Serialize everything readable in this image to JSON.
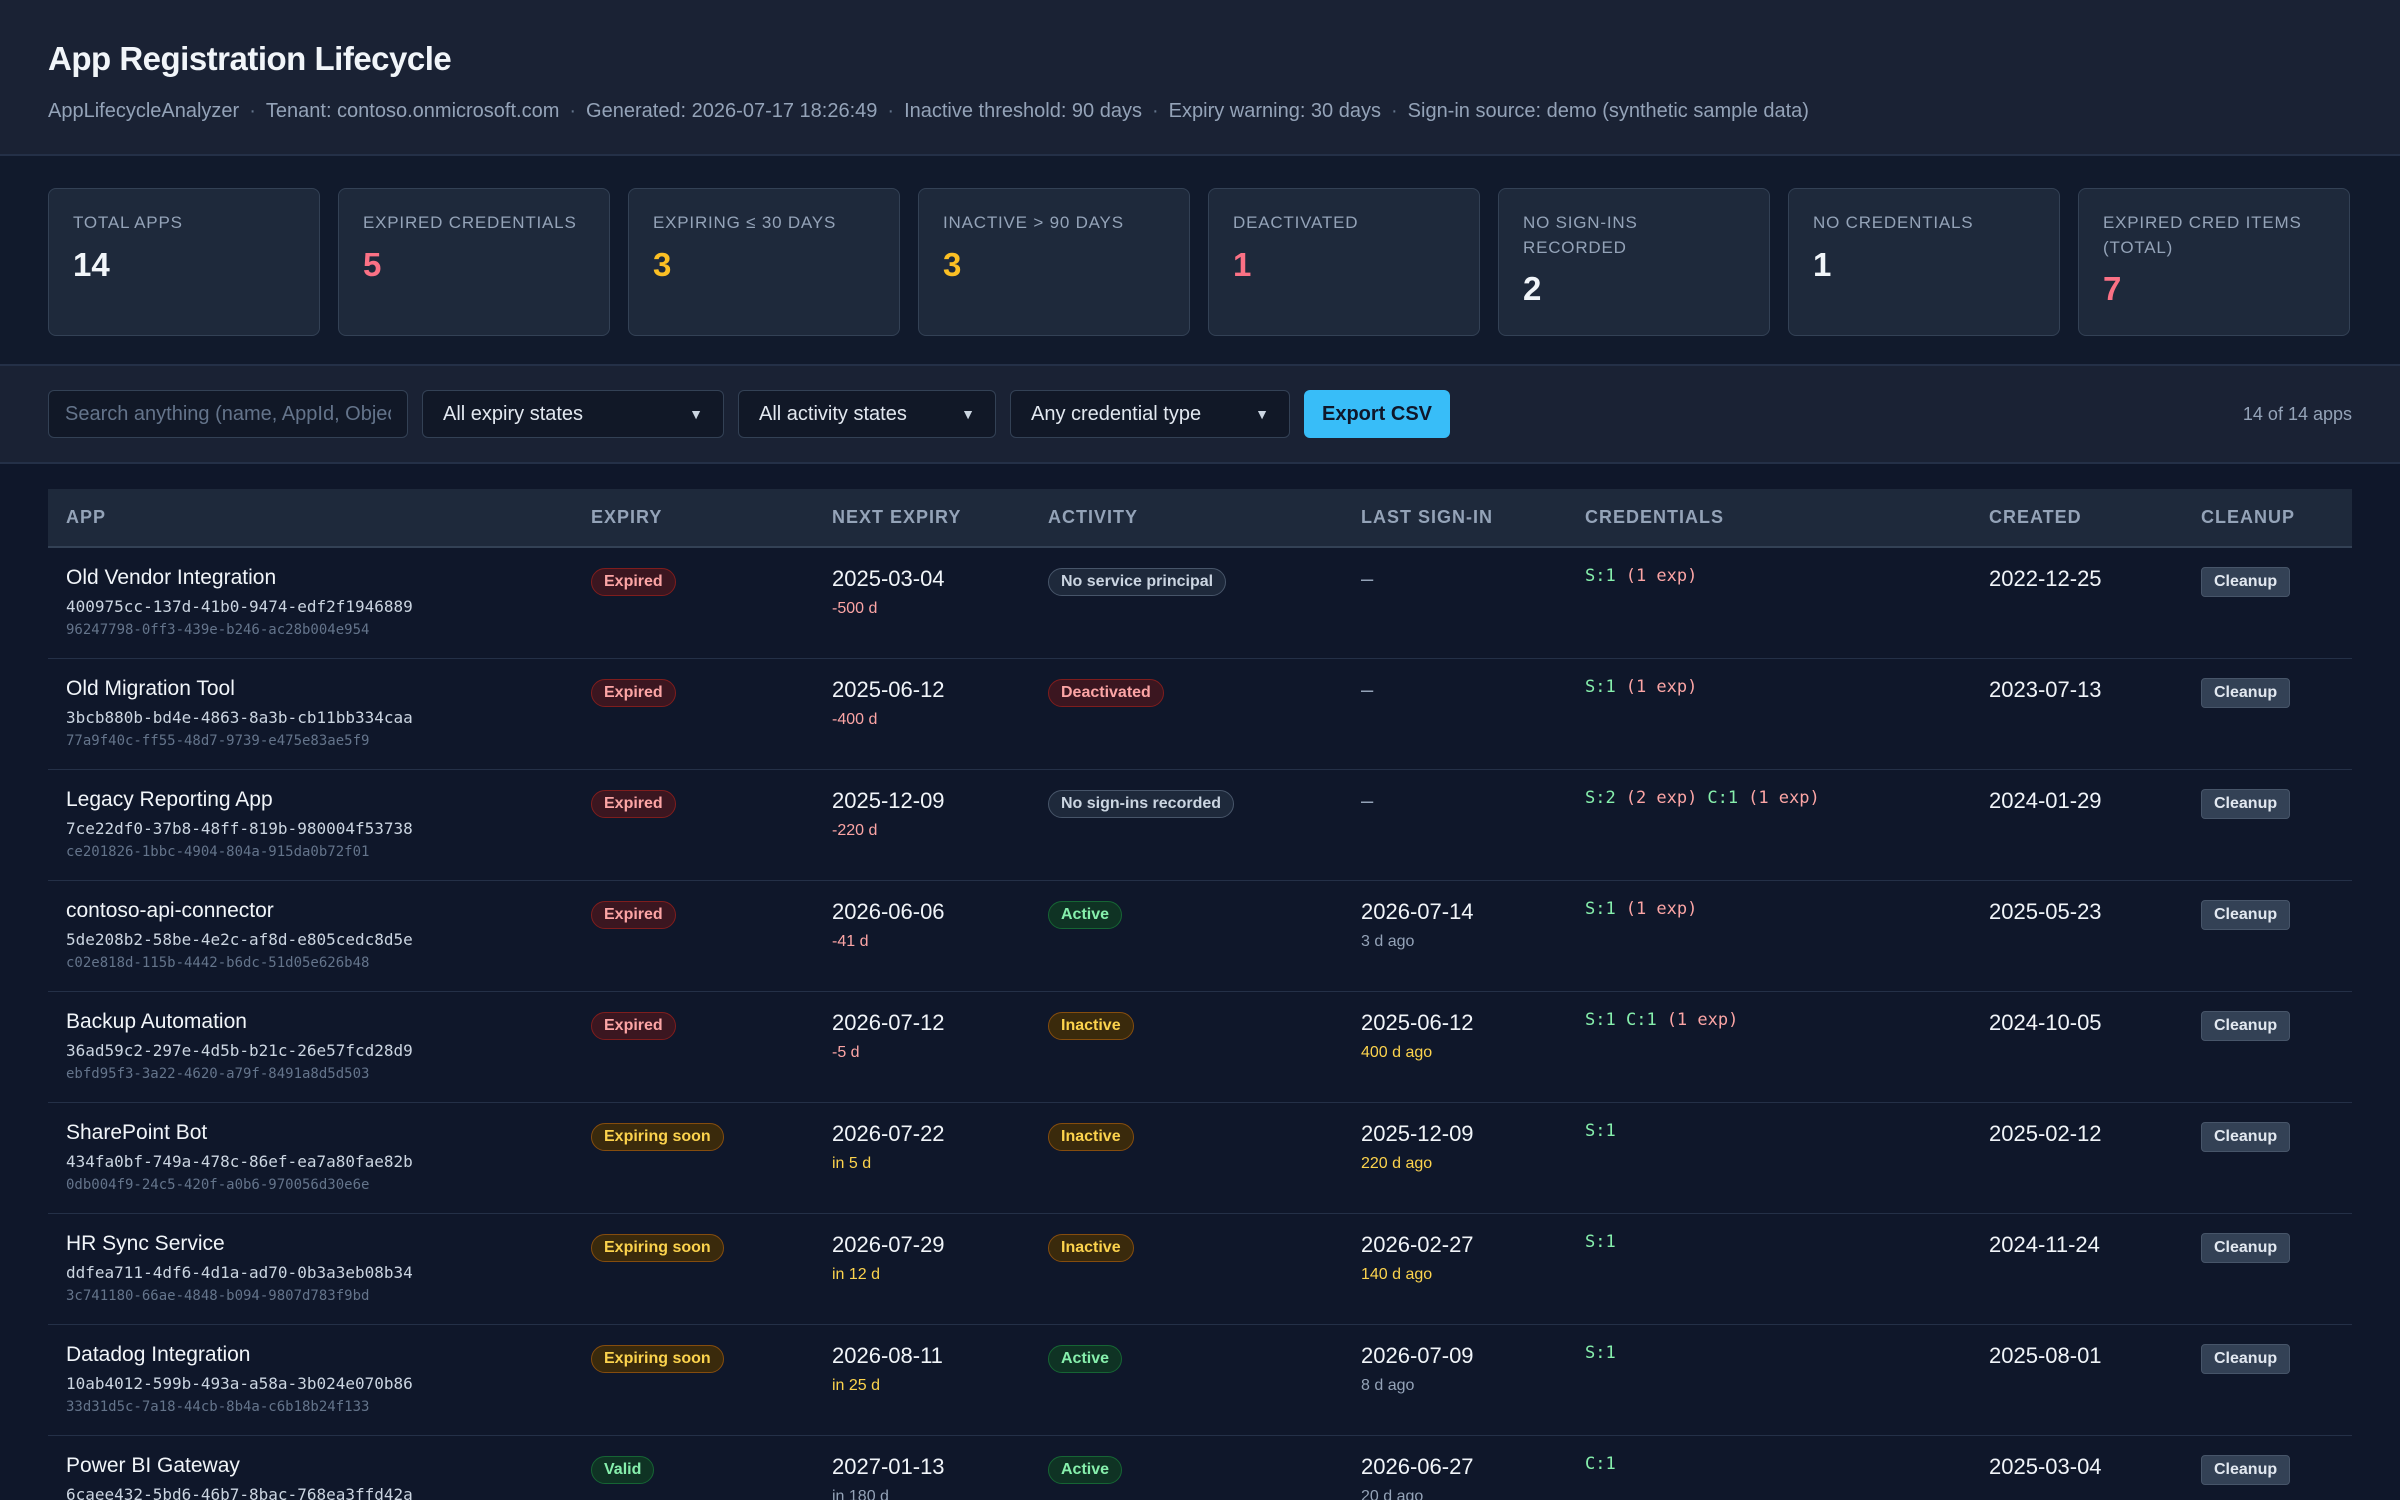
{
  "header": {
    "title": "App Registration Lifecycle",
    "meta": [
      "AppLifecycleAnalyzer",
      "Tenant: contoso.onmicrosoft.com",
      "Generated: 2026-07-17 18:26:49",
      "Inactive threshold: 90 days",
      "Expiry warning: 30 days",
      "Sign-in source: demo (synthetic sample data)"
    ],
    "separator": "·"
  },
  "summary": [
    {
      "label": "Total apps",
      "value": "14",
      "color": "#f1f5f9"
    },
    {
      "label": "Expired credentials",
      "value": "5",
      "color": "#fb7185"
    },
    {
      "label": "Expiring ≤ 30 days",
      "value": "3",
      "color": "#fbbf24"
    },
    {
      "label": "Inactive > 90 days",
      "value": "3",
      "color": "#fbbf24"
    },
    {
      "label": "Deactivated",
      "value": "1",
      "color": "#fb7185"
    },
    {
      "label": "No sign-ins recorded",
      "value": "2",
      "color": "#f1f5f9"
    },
    {
      "label": "No credentials",
      "value": "1",
      "color": "#f1f5f9"
    },
    {
      "label": "Expired cred items (total)",
      "value": "7",
      "color": "#fb7185"
    }
  ],
  "toolbar": {
    "search_placeholder": "Search anything (name, AppId, ObjectId…)",
    "expiry_filter": "All expiry states",
    "activity_filter": "All activity states",
    "credential_filter": "Any credential type",
    "export_label": "Export CSV",
    "count_text": "14 of 14 apps"
  },
  "table": {
    "columns": [
      "App",
      "Expiry",
      "Next expiry",
      "Activity",
      "Last sign-in",
      "Credentials",
      "Created",
      "Cleanup"
    ],
    "cleanup_label": "Cleanup",
    "rows": [
      {
        "name": "Old Vendor Integration",
        "app_id": "400975cc-137d-41b0-9474-edf2f1946889",
        "object_id": "96247798-0ff3-439e-b246-ac28b004e954",
        "expiry": "Expired",
        "expiry_kind": "expired",
        "next_expiry": "2025-03-04",
        "next_expiry_rel": "-500 d",
        "next_expiry_tone": "red",
        "activity": "No service principal",
        "activity_kind": "nosp",
        "last_signin": "–",
        "last_signin_rel": "",
        "last_signin_tone": "gray",
        "creds": [
          {
            "text": "S:1",
            "tone": "ok"
          },
          {
            "text": "(1 exp)",
            "tone": "exp"
          }
        ],
        "created": "2022-12-25"
      },
      {
        "name": "Old Migration Tool",
        "app_id": "3bcb880b-bd4e-4863-8a3b-cb11bb334caa",
        "object_id": "77a9f40c-ff55-48d7-9739-e475e83ae5f9",
        "expiry": "Expired",
        "expiry_kind": "expired",
        "next_expiry": "2025-06-12",
        "next_expiry_rel": "-400 d",
        "next_expiry_tone": "red",
        "activity": "Deactivated",
        "activity_kind": "deact",
        "last_signin": "–",
        "last_signin_rel": "",
        "last_signin_tone": "gray",
        "creds": [
          {
            "text": "S:1",
            "tone": "ok"
          },
          {
            "text": "(1 exp)",
            "tone": "exp"
          }
        ],
        "created": "2023-07-13"
      },
      {
        "name": "Legacy Reporting App",
        "app_id": "7ce22df0-37b8-48ff-819b-980004f53738",
        "object_id": "ce201826-1bbc-4904-804a-915da0b72f01",
        "expiry": "Expired",
        "expiry_kind": "expired",
        "next_expiry": "2025-12-09",
        "next_expiry_rel": "-220 d",
        "next_expiry_tone": "red",
        "activity": "No sign-ins recorded",
        "activity_kind": "nosp",
        "last_signin": "–",
        "last_signin_rel": "",
        "last_signin_tone": "gray",
        "creds": [
          {
            "text": "S:2",
            "tone": "ok"
          },
          {
            "text": "(2 exp)",
            "tone": "exp"
          },
          {
            "text": "C:1",
            "tone": "ok"
          },
          {
            "text": "(1 exp)",
            "tone": "exp"
          }
        ],
        "created": "2024-01-29"
      },
      {
        "name": "contoso-api-connector",
        "app_id": "5de208b2-58be-4e2c-af8d-e805cedc8d5e",
        "object_id": "c02e818d-115b-4442-b6dc-51d05e626b48",
        "expiry": "Expired",
        "expiry_kind": "expired",
        "next_expiry": "2026-06-06",
        "next_expiry_rel": "-41 d",
        "next_expiry_tone": "red",
        "activity": "Active",
        "activity_kind": "active",
        "last_signin": "2026-07-14",
        "last_signin_rel": "3 d ago",
        "last_signin_tone": "gray",
        "creds": [
          {
            "text": "S:1",
            "tone": "ok"
          },
          {
            "text": "(1 exp)",
            "tone": "exp"
          }
        ],
        "created": "2025-05-23"
      },
      {
        "name": "Backup Automation",
        "app_id": "36ad59c2-297e-4d5b-b21c-26e57fcd28d9",
        "object_id": "ebfd95f3-3a22-4620-a79f-8491a8d5d503",
        "expiry": "Expired",
        "expiry_kind": "expired",
        "next_expiry": "2026-07-12",
        "next_expiry_rel": "-5 d",
        "next_expiry_tone": "red",
        "activity": "Inactive",
        "activity_kind": "inactive",
        "last_signin": "2025-06-12",
        "last_signin_rel": "400 d ago",
        "last_signin_tone": "yel",
        "creds": [
          {
            "text": "S:1",
            "tone": "ok"
          },
          {
            "text": "C:1",
            "tone": "ok"
          },
          {
            "text": "(1 exp)",
            "tone": "exp"
          }
        ],
        "created": "2024-10-05"
      },
      {
        "name": "SharePoint Bot",
        "app_id": "434fa0bf-749a-478c-86ef-ea7a80fae82b",
        "object_id": "0db004f9-24c5-420f-a0b6-970056d30e6e",
        "expiry": "Expiring soon",
        "expiry_kind": "soon",
        "next_expiry": "2026-07-22",
        "next_expiry_rel": "in 5 d",
        "next_expiry_tone": "yel",
        "activity": "Inactive",
        "activity_kind": "inactive",
        "last_signin": "2025-12-09",
        "last_signin_rel": "220 d ago",
        "last_signin_tone": "yel",
        "creds": [
          {
            "text": "S:1",
            "tone": "ok"
          }
        ],
        "created": "2025-02-12"
      },
      {
        "name": "HR Sync Service",
        "app_id": "ddfea711-4df6-4d1a-ad70-0b3a3eb08b34",
        "object_id": "3c741180-66ae-4848-b094-9807d783f9bd",
        "expiry": "Expiring soon",
        "expiry_kind": "soon",
        "next_expiry": "2026-07-29",
        "next_expiry_rel": "in 12 d",
        "next_expiry_tone": "yel",
        "activity": "Inactive",
        "activity_kind": "inactive",
        "last_signin": "2026-02-27",
        "last_signin_rel": "140 d ago",
        "last_signin_tone": "yel",
        "creds": [
          {
            "text": "S:1",
            "tone": "ok"
          }
        ],
        "created": "2024-11-24"
      },
      {
        "name": "Datadog Integration",
        "app_id": "10ab4012-599b-493a-a58a-3b024e070b86",
        "object_id": "33d31d5c-7a18-44cb-8b4a-c6b18b24f133",
        "expiry": "Expiring soon",
        "expiry_kind": "soon",
        "next_expiry": "2026-08-11",
        "next_expiry_rel": "in 25 d",
        "next_expiry_tone": "yel",
        "activity": "Active",
        "activity_kind": "active",
        "last_signin": "2026-07-09",
        "last_signin_rel": "8 d ago",
        "last_signin_tone": "gray",
        "creds": [
          {
            "text": "S:1",
            "tone": "ok"
          }
        ],
        "created": "2025-08-01"
      },
      {
        "name": "Power BI Gateway",
        "app_id": "6caee432-5bd6-46b7-8bac-768ea3ffd42a",
        "object_id": "",
        "expiry": "Valid",
        "expiry_kind": "valid",
        "next_expiry": "2027-01-13",
        "next_expiry_rel": "in 180 d",
        "next_expiry_tone": "gray",
        "activity": "Active",
        "activity_kind": "active",
        "last_signin": "2026-06-27",
        "last_signin_rel": "20 d ago",
        "last_signin_tone": "gray",
        "creds": [
          {
            "text": "C:1",
            "tone": "ok"
          }
        ],
        "created": "2025-03-04"
      }
    ]
  }
}
